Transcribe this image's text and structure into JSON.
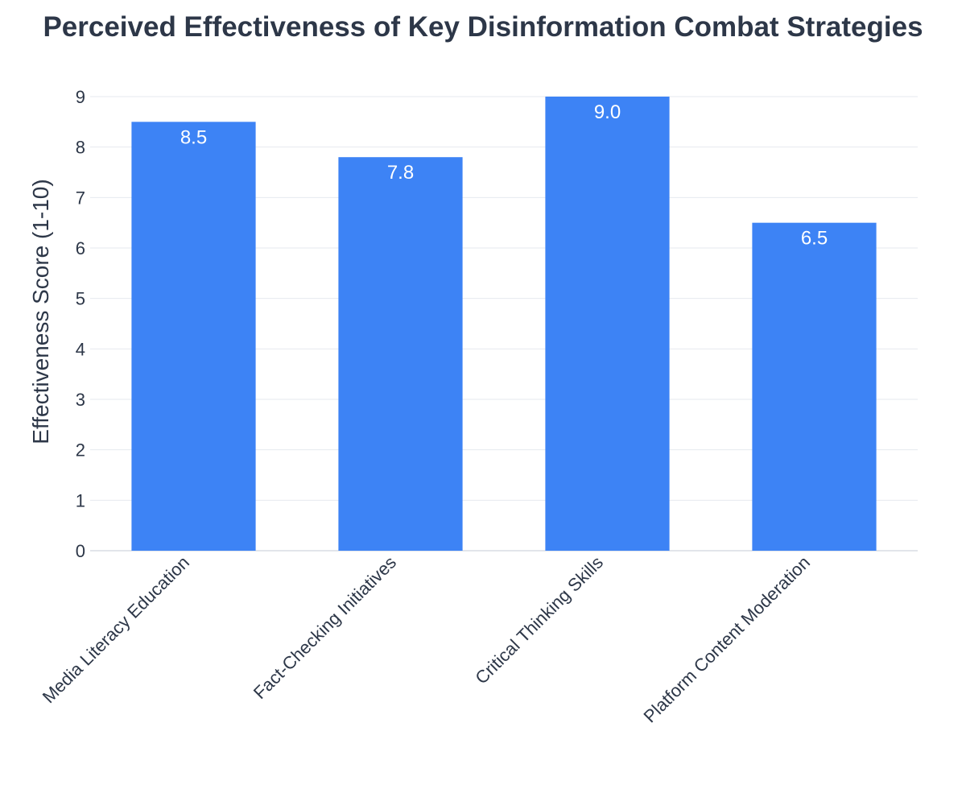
{
  "chart_data": {
    "type": "bar",
    "title": "Perceived Effectiveness of Key Disinformation Combat Strategies",
    "xlabel": "",
    "ylabel": "Effectiveness Score (1-10)",
    "categories": [
      "Media Literacy Education",
      "Fact-Checking Initiatives",
      "Critical Thinking Skills",
      "Platform Content Moderation"
    ],
    "values": [
      8.5,
      7.8,
      9.0,
      6.5
    ],
    "value_labels": [
      "8.5",
      "7.8",
      "9.0",
      "6.5"
    ],
    "ylim": [
      0,
      9
    ],
    "yticks": [
      0,
      1,
      2,
      3,
      4,
      5,
      6,
      7,
      8,
      9
    ],
    "grid": true,
    "legend": "none",
    "colors": {
      "bar": "#3d83f5",
      "text": "#2d3748",
      "grid": "#e6e9ef"
    }
  }
}
